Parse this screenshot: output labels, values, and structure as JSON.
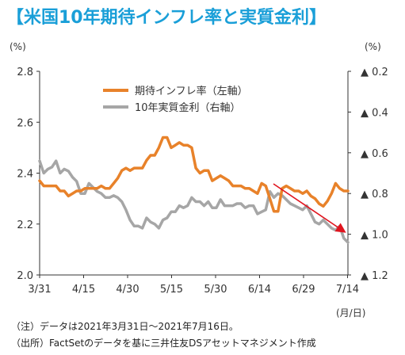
{
  "title": "【米国10年期待インフレ率と実質金利】",
  "left_unit": "(%)",
  "right_unit": "(%)",
  "xunit": "(月/日)",
  "notes": [
    "（注）データは2021年3月31日～2021年7月16日。",
    "（出所）FactSetのデータを基に三井住友DSアセットマネジメント作成"
  ],
  "colors": {
    "title": "#1a9fd8",
    "orange": "#e8822a",
    "gray": "#a6a6a6",
    "arrow": "#e0141e"
  },
  "chart_data": {
    "type": "line",
    "x_ticks": [
      "3/31",
      "4/15",
      "4/30",
      "5/15",
      "5/30",
      "6/14",
      "6/29",
      "7/14"
    ],
    "left_axis": {
      "ylim": [
        2.0,
        2.8
      ],
      "ticks": [
        "2.0",
        "2.2",
        "2.4",
        "2.6",
        "2.8"
      ]
    },
    "right_axis": {
      "ylim": [
        0.2,
        1.2
      ],
      "inverted": true,
      "ticks": [
        "▲ 0.2",
        "▲ 0.4",
        "▲ 0.6",
        "▲ 0.8",
        "▲ 1.0",
        "▲ 1.2"
      ]
    },
    "series": [
      {
        "name": "期待インフレ率（左軸）",
        "axis": "left",
        "x": [
          0,
          1,
          2,
          3,
          4,
          5,
          6,
          7,
          8,
          9,
          10,
          11,
          12,
          13,
          14,
          15,
          16,
          17,
          18,
          19,
          20,
          21,
          22,
          23,
          24,
          25,
          26,
          27,
          28,
          29,
          30,
          31,
          32,
          33,
          34,
          35,
          36,
          37,
          38,
          39,
          40,
          41,
          42,
          43,
          44,
          45,
          46,
          47,
          48,
          49,
          50,
          51,
          52,
          53,
          54,
          55,
          56,
          57,
          58,
          59,
          60,
          61,
          62,
          63,
          64,
          65,
          66,
          67,
          68,
          69,
          70,
          71,
          72,
          73,
          74,
          75
        ],
        "values": [
          2.37,
          2.35,
          2.35,
          2.35,
          2.35,
          2.33,
          2.33,
          2.31,
          2.32,
          2.33,
          2.33,
          2.34,
          2.34,
          2.34,
          2.34,
          2.35,
          2.34,
          2.34,
          2.36,
          2.38,
          2.41,
          2.42,
          2.41,
          2.42,
          2.42,
          2.42,
          2.45,
          2.47,
          2.47,
          2.5,
          2.54,
          2.54,
          2.5,
          2.51,
          2.52,
          2.51,
          2.51,
          2.5,
          2.42,
          2.4,
          2.41,
          2.41,
          2.37,
          2.38,
          2.39,
          2.38,
          2.37,
          2.35,
          2.35,
          2.35,
          2.34,
          2.34,
          2.33,
          2.32,
          2.36,
          2.35,
          2.3,
          2.25,
          2.25,
          2.34,
          2.35,
          2.34,
          2.33,
          2.33,
          2.32,
          2.33,
          2.31,
          2.3,
          2.28,
          2.27,
          2.29,
          2.32,
          2.36,
          2.34,
          2.33,
          2.33
        ]
      },
      {
        "name": "10年実質金利（右軸）",
        "axis": "right",
        "x": [
          0,
          1,
          2,
          3,
          4,
          5,
          6,
          7,
          8,
          9,
          10,
          11,
          12,
          13,
          14,
          15,
          16,
          17,
          18,
          19,
          20,
          21,
          22,
          23,
          24,
          25,
          26,
          27,
          28,
          29,
          30,
          31,
          32,
          33,
          34,
          35,
          36,
          37,
          38,
          39,
          40,
          41,
          42,
          43,
          44,
          45,
          46,
          47,
          48,
          49,
          50,
          51,
          52,
          53,
          54,
          55,
          56,
          57,
          58,
          59,
          60,
          61,
          62,
          63,
          64,
          65,
          66,
          67,
          68,
          69,
          70,
          71,
          72,
          73,
          74,
          75
        ],
        "values": [
          -0.64,
          -0.7,
          -0.68,
          -0.67,
          -0.64,
          -0.7,
          -0.68,
          -0.69,
          -0.72,
          -0.74,
          -0.8,
          -0.8,
          -0.75,
          -0.77,
          -0.79,
          -0.8,
          -0.82,
          -0.82,
          -0.81,
          -0.82,
          -0.84,
          -0.88,
          -0.93,
          -0.96,
          -0.96,
          -0.97,
          -0.92,
          -0.94,
          -0.95,
          -0.97,
          -0.93,
          -0.92,
          -0.89,
          -0.89,
          -0.86,
          -0.87,
          -0.86,
          -0.82,
          -0.84,
          -0.84,
          -0.86,
          -0.84,
          -0.87,
          -0.87,
          -0.83,
          -0.86,
          -0.86,
          -0.86,
          -0.85,
          -0.85,
          -0.87,
          -0.86,
          -0.86,
          -0.9,
          -0.89,
          -0.88,
          -0.79,
          -0.82,
          -0.8,
          -0.81,
          -0.83,
          -0.85,
          -0.86,
          -0.87,
          -0.88,
          -0.86,
          -0.9,
          -0.94,
          -0.95,
          -0.93,
          -0.95,
          -0.97,
          -0.98,
          -0.96,
          -1.02,
          -1.04
        ]
      }
    ],
    "grid": false,
    "legend_position": "top-left inside plot"
  }
}
